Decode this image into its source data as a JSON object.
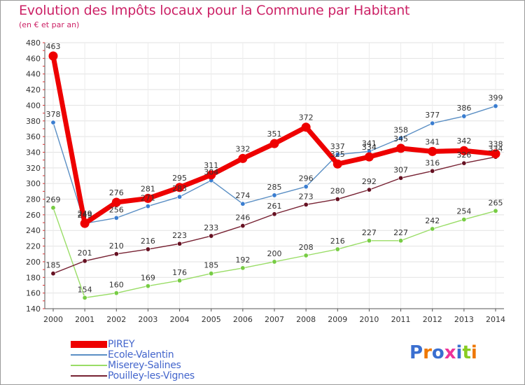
{
  "title": "Evolution des Impôts locaux pour la Commune par Habitant",
  "subtitle": "(en € et par an)",
  "logo_text": "Proxiti",
  "chart_data": {
    "type": "line",
    "title": "Evolution des Impôts locaux pour la Commune par Habitant",
    "subtitle": "(en € et par an)",
    "xlabel": "",
    "ylabel": "",
    "x": [
      "2000",
      "2001",
      "2002",
      "2003",
      "2004",
      "2005",
      "2006",
      "2007",
      "2008",
      "2009",
      "2010",
      "2011",
      "2012",
      "2013",
      "2014"
    ],
    "ylim": [
      140,
      480
    ],
    "yticks": [
      140,
      160,
      180,
      200,
      220,
      240,
      260,
      280,
      300,
      320,
      340,
      360,
      380,
      400,
      420,
      440,
      460,
      480
    ],
    "grid": true,
    "legend": "bottom-left",
    "series": [
      {
        "name": "Ecole-Valentin",
        "color": "#5b8fc4",
        "marker": "#3a7dd0",
        "values": [
          378,
          249,
          256,
          271,
          283,
          304,
          274,
          285,
          296,
          337,
          341,
          358,
          377,
          386,
          399
        ],
        "labels": [
          "378",
          "249",
          "256",
          "271",
          "283",
          "304",
          "274",
          "285",
          "296",
          "337",
          "341",
          "358",
          "377",
          "386",
          "399"
        ]
      },
      {
        "name": "Miserey-Salines",
        "color": "#99dd66",
        "marker": "#77cc44",
        "values": [
          269,
          154,
          160,
          169,
          176,
          185,
          192,
          200,
          208,
          216,
          227,
          227,
          242,
          254,
          265
        ],
        "labels": [
          "269",
          "154",
          "160",
          "169",
          "176",
          "185",
          "192",
          "200",
          "208",
          "216",
          "227",
          "227",
          "242",
          "254",
          "265"
        ]
      },
      {
        "name": "Pouilley-les-Vignes",
        "color": "#772233",
        "marker": "#661122",
        "values": [
          185,
          201,
          210,
          216,
          223,
          233,
          246,
          261,
          273,
          280,
          292,
          307,
          316,
          326,
          334
        ],
        "labels": [
          "185",
          "201",
          "210",
          "216",
          "223",
          "233",
          "246",
          "261",
          "273",
          "280",
          "292",
          "307",
          "316",
          "326",
          "334"
        ]
      },
      {
        "name": "PIREY",
        "color": "#ee0000",
        "marker": "#ee0000",
        "values": [
          463,
          249,
          276,
          281,
          295,
          311,
          332,
          351,
          372,
          325,
          334,
          345,
          341,
          342,
          338
        ],
        "labels": [
          "463",
          "249",
          "276",
          "281",
          "295",
          "311",
          "332",
          "351",
          "372",
          "325",
          "334",
          "345",
          "341",
          "342",
          "338"
        ]
      }
    ],
    "legend_order": [
      "PIREY",
      "Ecole-Valentin",
      "Miserey-Salines",
      "Pouilley-les-Vignes"
    ]
  },
  "legend": {
    "items": [
      {
        "label": "PIREY",
        "color": "#ee0000"
      },
      {
        "label": "Ecole-Valentin",
        "color": "#5b8fc4"
      },
      {
        "label": "Miserey-Salines",
        "color": "#99dd66"
      },
      {
        "label": "Pouilley-les-Vignes",
        "color": "#772233"
      }
    ]
  },
  "logo_colors": [
    "#3a6fd0",
    "#ee7700",
    "#3a6fd0",
    "#ee3399",
    "#3a6fd0",
    "#88cc22",
    "#ee7700"
  ]
}
